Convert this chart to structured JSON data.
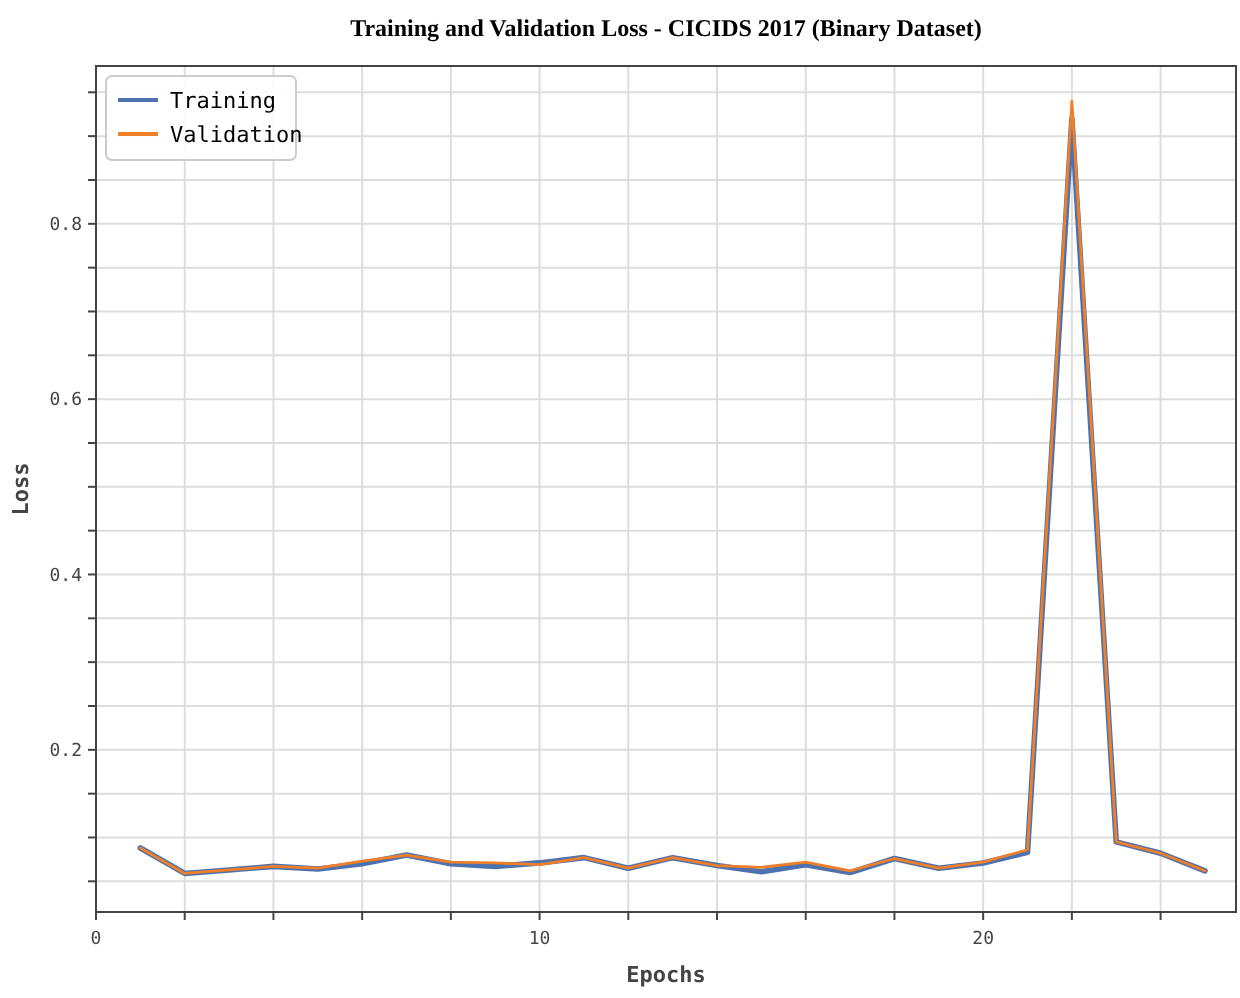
{
  "chart_data": {
    "type": "line",
    "title": "Training and Validation Loss - CICIDS 2017 (Binary Dataset)",
    "xlabel": "Epochs",
    "ylabel": "Loss",
    "x": [
      1,
      2,
      3,
      4,
      5,
      6,
      7,
      8,
      9,
      10,
      11,
      12,
      13,
      14,
      15,
      16,
      17,
      18,
      19,
      20,
      21,
      22,
      23,
      24,
      25
    ],
    "series": [
      {
        "name": "Training",
        "color": "#4c72b0",
        "values": [
          0.088,
          0.059,
          0.063,
          0.067,
          0.064,
          0.07,
          0.08,
          0.07,
          0.067,
          0.071,
          0.077,
          0.065,
          0.077,
          0.068,
          0.061,
          0.069,
          0.06,
          0.076,
          0.065,
          0.071,
          0.083,
          0.92,
          0.095,
          0.082,
          0.062
        ]
      },
      {
        "name": "Validation",
        "color": "#f07f2a",
        "values": [
          0.088,
          0.059,
          0.063,
          0.067,
          0.065,
          0.073,
          0.08,
          0.072,
          0.071,
          0.069,
          0.077,
          0.065,
          0.077,
          0.068,
          0.066,
          0.072,
          0.062,
          0.076,
          0.065,
          0.072,
          0.086,
          0.94,
          0.095,
          0.082,
          0.062
        ]
      }
    ],
    "xlim": [
      0,
      25.7
    ],
    "ylim": [
      0.015,
      0.98
    ],
    "xticks": [
      0,
      {
        "value": 2,
        "label": null
      },
      {
        "value": 4,
        "label": null
      },
      {
        "value": 6,
        "label": null
      },
      {
        "value": 8,
        "label": null
      },
      10,
      {
        "value": 12,
        "label": null
      },
      {
        "value": 14,
        "label": null
      },
      {
        "value": 16,
        "label": null
      },
      {
        "value": 18,
        "label": null
      },
      20,
      {
        "value": 22,
        "label": null
      },
      {
        "value": 24,
        "label": null
      }
    ],
    "yticks": [
      {
        "value": 0.05,
        "label": null
      },
      {
        "value": 0.1,
        "label": null
      },
      {
        "value": 0.15,
        "label": null
      },
      {
        "value": 0.2,
        "label": "0.2"
      },
      {
        "value": 0.25,
        "label": null
      },
      {
        "value": 0.3,
        "label": null
      },
      {
        "value": 0.35,
        "label": null
      },
      {
        "value": 0.4,
        "label": "0.4"
      },
      {
        "value": 0.45,
        "label": null
      },
      {
        "value": 0.5,
        "label": null
      },
      {
        "value": 0.55,
        "label": null
      },
      {
        "value": 0.6,
        "label": "0.6"
      },
      {
        "value": 0.65,
        "label": null
      },
      {
        "value": 0.7,
        "label": null
      },
      {
        "value": 0.75,
        "label": null
      },
      {
        "value": 0.8,
        "label": "0.8"
      },
      {
        "value": 0.85,
        "label": null
      },
      {
        "value": 0.9,
        "label": null
      },
      {
        "value": 0.95,
        "label": null
      }
    ],
    "grid": true,
    "legend": "top left",
    "marker": "none",
    "line_style": "solid"
  }
}
